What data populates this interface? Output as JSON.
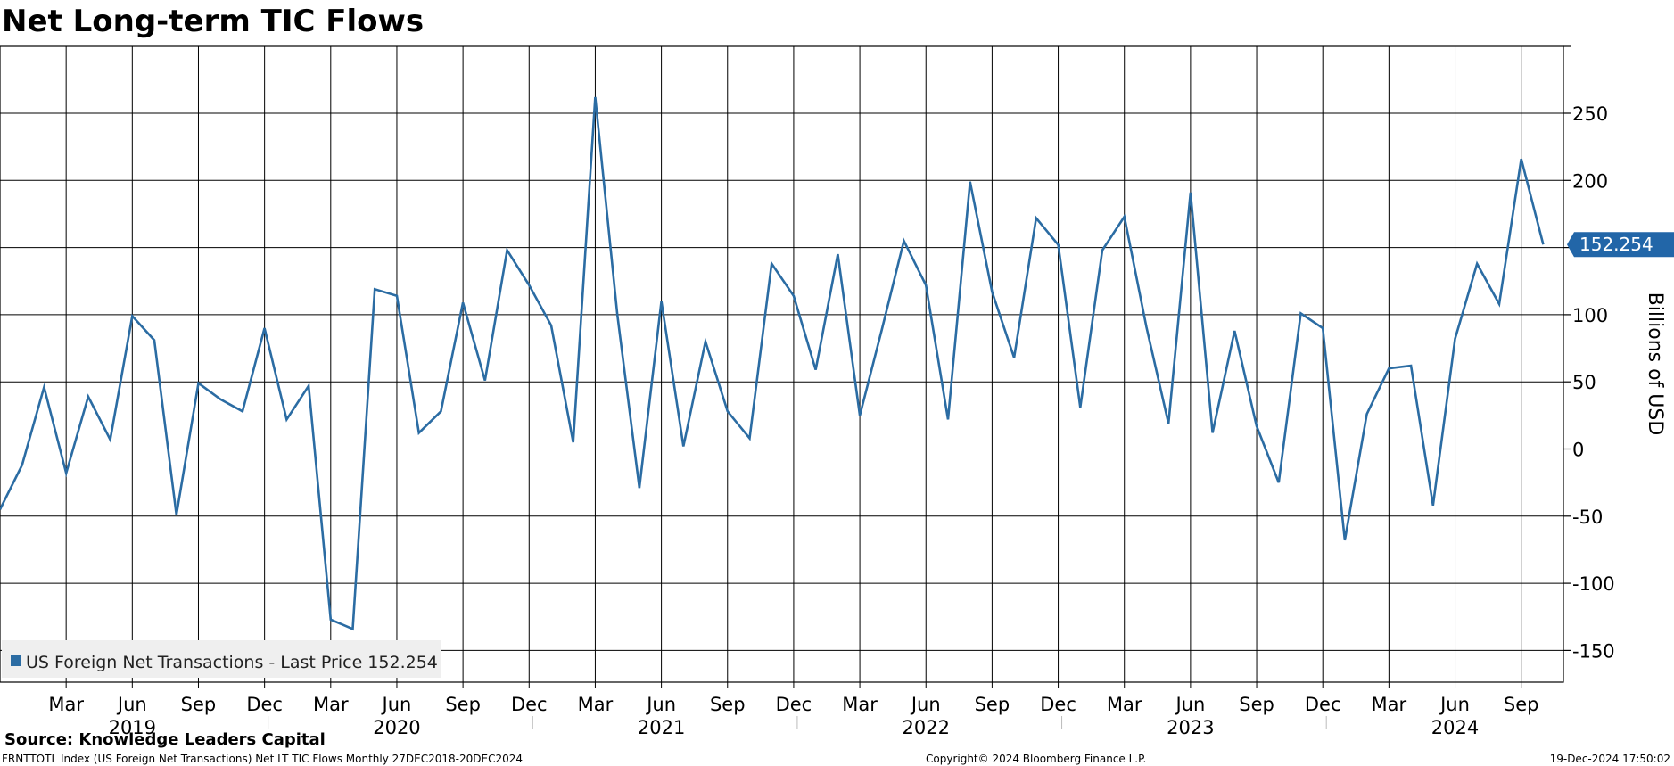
{
  "chart_data": {
    "type": "line",
    "title": "Net Long-term TIC Flows",
    "ylabel": "Billions of USD",
    "ylim": [
      -175,
      300
    ],
    "y_ticks": [
      250,
      200,
      150,
      100,
      50,
      0,
      -50,
      -100,
      -150
    ],
    "y_tick_labels": [
      "250",
      "200",
      "150",
      "100",
      "50",
      "0",
      "-50",
      "-100",
      "-150"
    ],
    "month_tick_labels": [
      "Mar",
      "Jun",
      "Sep",
      "Dec",
      "Mar",
      "Jun",
      "Sep",
      "Dec",
      "Mar",
      "Jun",
      "Sep",
      "Dec",
      "Mar",
      "Jun",
      "Sep",
      "Dec",
      "Mar",
      "Jun",
      "Sep",
      "Dec",
      "Mar",
      "Jun",
      "Sep"
    ],
    "year_labels": [
      "2019",
      "2020",
      "2021",
      "2022",
      "2023",
      "2024"
    ],
    "last_value_label": "152.254",
    "legend": {
      "placement": "bottom-left",
      "text": "US Foreign Net Transactions - Last Price 152.254"
    },
    "grid": true,
    "series": [
      {
        "name": "US Foreign Net Transactions",
        "color": "#2b6ca3",
        "x": [
          "2018-12",
          "2019-01",
          "2019-02",
          "2019-03",
          "2019-04",
          "2019-05",
          "2019-06",
          "2019-07",
          "2019-08",
          "2019-09",
          "2019-10",
          "2019-11",
          "2019-12",
          "2020-01",
          "2020-02",
          "2020-03",
          "2020-04",
          "2020-05",
          "2020-06",
          "2020-07",
          "2020-08",
          "2020-09",
          "2020-10",
          "2020-11",
          "2020-12",
          "2021-01",
          "2021-02",
          "2021-03",
          "2021-04",
          "2021-05",
          "2021-06",
          "2021-07",
          "2021-08",
          "2021-09",
          "2021-10",
          "2021-11",
          "2021-12",
          "2022-01",
          "2022-02",
          "2022-03",
          "2022-04",
          "2022-05",
          "2022-06",
          "2022-07",
          "2022-08",
          "2022-09",
          "2022-10",
          "2022-11",
          "2022-12",
          "2023-01",
          "2023-02",
          "2023-03",
          "2023-04",
          "2023-05",
          "2023-06",
          "2023-07",
          "2023-08",
          "2023-09",
          "2023-10",
          "2023-11",
          "2023-12",
          "2024-01",
          "2024-02",
          "2024-03",
          "2024-04",
          "2024-05",
          "2024-06",
          "2024-07",
          "2024-08",
          "2024-09",
          "2024-10"
        ],
        "values": [
          -45,
          -12,
          46,
          -18,
          39,
          7,
          99,
          81,
          -49,
          49,
          37,
          28,
          90,
          22,
          47,
          -127,
          -134,
          119,
          114,
          12,
          28,
          109,
          51,
          148,
          122,
          92,
          5,
          262,
          100,
          -29,
          110,
          2,
          80,
          28,
          8,
          138,
          114,
          59,
          145,
          25,
          89,
          155,
          122,
          22,
          199,
          117,
          68,
          172,
          152,
          31,
          148,
          173,
          91,
          19,
          191,
          12,
          88,
          17,
          -25,
          101,
          90,
          -68,
          26,
          60,
          62,
          -42,
          82,
          138,
          108,
          216,
          152.254
        ]
      }
    ]
  },
  "source_label": "Source: Knowledge Leaders Capital",
  "footer": {
    "left": "FRNTTOTL Index (US Foreign Net Transactions) Net LT TIC Flows  Monthly 27DEC2018-20DEC2024",
    "center": "Copyright© 2024 Bloomberg Finance L.P.",
    "right": "19-Dec-2024 17:50:02"
  }
}
